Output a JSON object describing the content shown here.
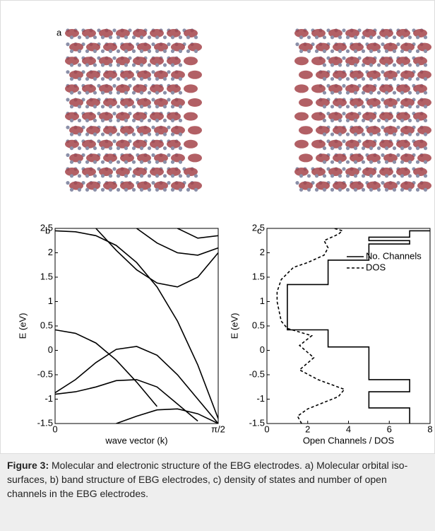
{
  "panel_a_label": "a",
  "chart_data": [
    {
      "type": "line",
      "panel_label": "b",
      "xlabel": "wave vector (k)",
      "ylabel": "E (eV)",
      "x": [
        0,
        0.1963,
        0.3927,
        0.589,
        0.7854,
        0.9817,
        1.1781,
        1.3744,
        1.5708
      ],
      "xlim": [
        0,
        1.5708
      ],
      "xticks": [
        0,
        {
          "value": 1.5708,
          "label": "π/2"
        }
      ],
      "ylim": [
        -1.5,
        2.5
      ],
      "yticks": [
        -1.5,
        -1,
        -0.5,
        0,
        0.5,
        1,
        1.5,
        2,
        2.5
      ],
      "series": [
        {
          "color": "#000000",
          "values": [
            2.45,
            2.43,
            2.35,
            2.15,
            1.8,
            1.3,
            0.6,
            -0.3,
            -1.4
          ]
        },
        {
          "color": "#000000",
          "values": [
            0.42,
            0.35,
            0.15,
            -0.2,
            -0.65,
            -1.15,
            null,
            null,
            null
          ]
        },
        {
          "color": "#000000",
          "values": [
            -0.87,
            -0.6,
            -0.25,
            0.02,
            0.08,
            -0.1,
            -0.5,
            -1.0,
            -1.5
          ]
        },
        {
          "color": "#000000",
          "values": [
            -0.9,
            -0.85,
            -0.75,
            -0.62,
            -0.6,
            -0.75,
            -1.1,
            -1.45,
            null
          ]
        },
        {
          "color": "#000000",
          "values": [
            null,
            null,
            null,
            -1.5,
            -1.35,
            -1.22,
            -1.2,
            -1.3,
            -1.5
          ]
        },
        {
          "color": "#000000",
          "values": [
            null,
            null,
            2.5,
            2.05,
            1.65,
            1.38,
            1.3,
            1.5,
            2.0
          ]
        },
        {
          "color": "#000000",
          "values": [
            null,
            null,
            null,
            null,
            2.5,
            2.2,
            2.0,
            1.95,
            2.1
          ]
        },
        {
          "color": "#000000",
          "values": [
            null,
            null,
            null,
            null,
            null,
            null,
            2.5,
            2.3,
            2.35
          ]
        }
      ]
    },
    {
      "type": "line",
      "panel_label": "c",
      "xlabel": "Open Channels / DOS",
      "ylabel": "E (eV)",
      "xlim": [
        0,
        8
      ],
      "xticks": [
        0,
        2,
        4,
        6,
        8
      ],
      "ylim": [
        -1.5,
        2.5
      ],
      "yticks": [
        -1.5,
        -1,
        -0.5,
        0,
        0.5,
        1,
        1.5,
        2,
        2.5
      ],
      "series": [
        {
          "name": "No. Channels",
          "color": "#000000",
          "dash": false,
          "x": [
            7,
            7,
            5,
            5,
            7,
            7,
            5,
            5,
            3,
            3,
            1,
            1,
            3,
            3,
            5,
            5,
            7,
            7,
            5,
            5,
            7,
            7,
            8
          ],
          "y": [
            -1.5,
            -1.18,
            -1.18,
            -0.85,
            -0.85,
            -0.6,
            -0.6,
            0.07,
            0.07,
            0.42,
            0.42,
            1.35,
            1.35,
            1.85,
            1.85,
            2.18,
            2.18,
            2.25,
            2.25,
            2.32,
            2.32,
            2.45,
            2.45
          ]
        },
        {
          "name": "DOS",
          "color": "#000000",
          "dash": true,
          "x": [
            1.7,
            1.5,
            2.0,
            3.5,
            3.8,
            2.5,
            1.6,
            2.3,
            1.6,
            2.2,
            1.0,
            0.7,
            0.5,
            0.5,
            0.7,
            1.3,
            2.0,
            2.8,
            3.0,
            2.8,
            3.5,
            3.7,
            3.3
          ],
          "y": [
            -1.5,
            -1.35,
            -1.2,
            -0.95,
            -0.8,
            -0.6,
            -0.4,
            -0.15,
            0.1,
            0.3,
            0.45,
            0.6,
            1.0,
            1.2,
            1.45,
            1.7,
            1.8,
            1.95,
            2.1,
            2.25,
            2.38,
            2.45,
            2.5
          ]
        }
      ]
    }
  ],
  "caption": {
    "label": "Figure 3:",
    "text": "Molecular and electronic structure of the EBG electrodes. a) Molecular orbital iso-surfaces, b) band structure of EBG electrodes, c) density of states and number of open channels in the EBG electrodes."
  }
}
